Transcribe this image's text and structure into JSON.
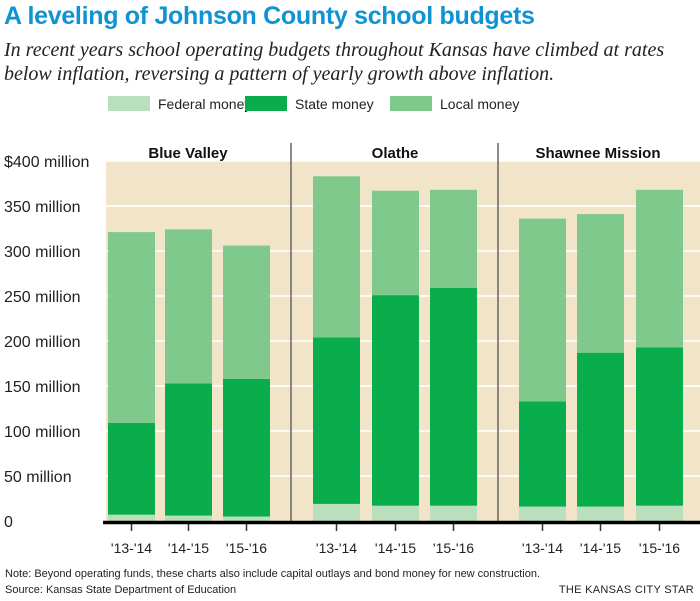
{
  "chart_data": {
    "type": "bar",
    "stacked": true,
    "title": "A leveling of Johnson County school budgets",
    "subtitle": "In recent years school operating budgets throughout Kansas have climbed at rates below inflation, reversing a pattern of yearly growth above inflation.",
    "legend": [
      "Federal money",
      "State money",
      "Local money"
    ],
    "legend_placement": "top-center",
    "ylim": [
      0,
      400
    ],
    "yticks": [
      0,
      50,
      100,
      150,
      200,
      250,
      300,
      350,
      400
    ],
    "ytick_labels": [
      "0",
      "50 million",
      "100 million",
      "150 million",
      "200 million",
      "250 million",
      "300 million",
      "350 million",
      "$400 million"
    ],
    "groups": [
      {
        "name": "Blue Valley",
        "categories": [
          "'13-'14",
          "'14-'15",
          "'15-'16"
        ],
        "series": [
          {
            "name": "Federal money",
            "values": [
              7,
              6,
              5
            ]
          },
          {
            "name": "State money",
            "values": [
              102,
              147,
              153
            ]
          },
          {
            "name": "Local money",
            "values": [
              212,
              171,
              148
            ]
          }
        ],
        "totals": [
          321,
          324,
          306
        ]
      },
      {
        "name": "Olathe",
        "categories": [
          "'13-'14",
          "'14-'15",
          "'15-'16"
        ],
        "series": [
          {
            "name": "Federal money",
            "values": [
              19,
              17,
              17
            ]
          },
          {
            "name": "State money",
            "values": [
              185,
              234,
              242
            ]
          },
          {
            "name": "Local money",
            "values": [
              179,
              116,
              109
            ]
          }
        ],
        "totals": [
          383,
          367,
          368
        ]
      },
      {
        "name": "Shawnee Mission",
        "categories": [
          "'13-'14",
          "'14-'15",
          "'15-'16"
        ],
        "series": [
          {
            "name": "Federal money",
            "values": [
              16,
              16,
              17
            ]
          },
          {
            "name": "State money",
            "values": [
              117,
              171,
              176
            ]
          },
          {
            "name": "Local money",
            "values": [
              203,
              154,
              175
            ]
          }
        ],
        "totals": [
          336,
          341,
          368
        ]
      }
    ],
    "colors": {
      "Federal money": "#b9dfbd",
      "State money": "#0aad4b",
      "Local money": "#80c98c"
    }
  },
  "notes": {
    "note": "Note: Beyond operating funds, these charts also include capital outlays and bond money for new construction.",
    "source": "Source: Kansas State Department of Education",
    "credit": "THE KANSAS CITY STAR"
  }
}
